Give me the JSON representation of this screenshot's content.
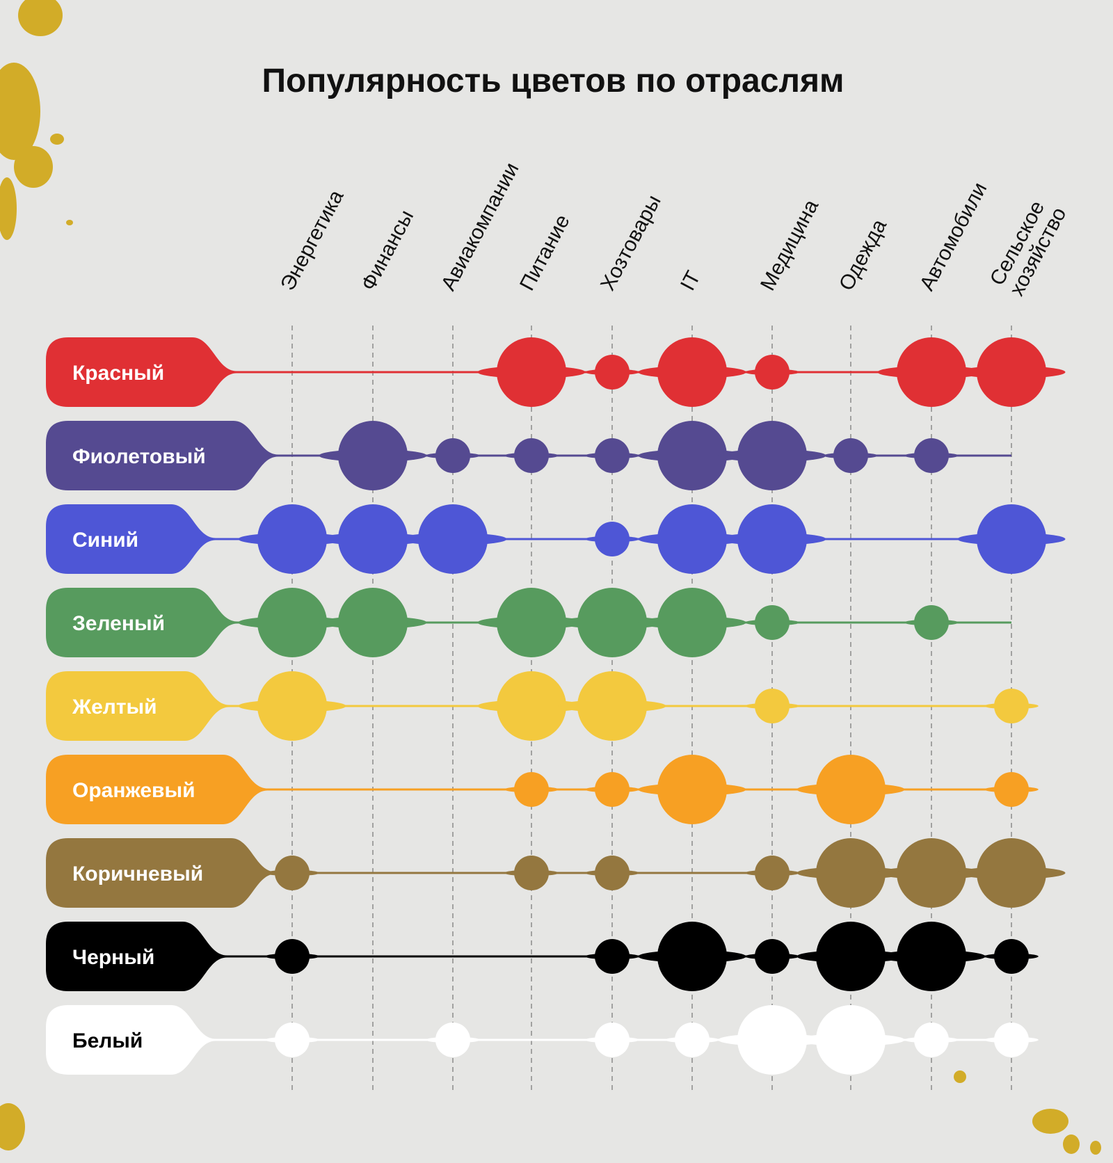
{
  "chart_data": {
    "type": "bubble-grid",
    "title": "Популярность цветов по отраслям",
    "categories": [
      "Энергетика",
      "Финансы",
      "Авиакомпании",
      "Питание",
      "Хозтовары",
      "IT",
      "Медицина",
      "Одежда",
      "Автомобили",
      "Сельское хозяйство"
    ],
    "scale_note": "values: 0 = none, 1 = small, 2 = medium, 3 = large",
    "series": [
      {
        "name": "Красный",
        "color": "#e03034",
        "text_color": "#ffffff",
        "values": [
          0,
          0,
          0,
          3,
          1,
          3,
          1,
          0,
          3,
          3
        ]
      },
      {
        "name": "Фиолетовый",
        "color": "#554a91",
        "text_color": "#ffffff",
        "values": [
          0,
          3,
          1,
          1,
          1,
          3,
          3,
          1,
          1,
          0
        ]
      },
      {
        "name": "Синий",
        "color": "#4e56d6",
        "text_color": "#ffffff",
        "values": [
          3,
          3,
          3,
          0,
          1,
          3,
          3,
          0,
          0,
          3
        ]
      },
      {
        "name": "Зеленый",
        "color": "#579b5e",
        "text_color": "#ffffff",
        "values": [
          3,
          3,
          0,
          3,
          3,
          3,
          1,
          0,
          1,
          0
        ]
      },
      {
        "name": "Желтый",
        "color": "#f3c93e",
        "text_color": "#ffffff",
        "values": [
          3,
          0,
          0,
          3,
          3,
          0,
          1,
          0,
          0,
          1
        ]
      },
      {
        "name": "Оранжевый",
        "color": "#f7a023",
        "text_color": "#ffffff",
        "values": [
          0,
          0,
          0,
          1,
          1,
          3,
          0,
          3,
          0,
          1
        ]
      },
      {
        "name": "Коричневый",
        "color": "#94773f",
        "text_color": "#ffffff",
        "values": [
          1,
          0,
          0,
          1,
          1,
          0,
          1,
          3,
          3,
          3
        ]
      },
      {
        "name": "Черный",
        "color": "#000000",
        "text_color": "#ffffff",
        "values": [
          1,
          0,
          0,
          0,
          1,
          3,
          1,
          3,
          3,
          1
        ]
      },
      {
        "name": "Белый",
        "color": "#ffffff",
        "text_color": "#000000",
        "values": [
          1,
          0,
          1,
          0,
          1,
          1,
          3,
          3,
          1,
          1
        ]
      }
    ]
  },
  "colors": {
    "background": "#e6e6e4",
    "splatter": "#d2ac28",
    "grid": "#8a8a8a",
    "title": "#111111"
  }
}
